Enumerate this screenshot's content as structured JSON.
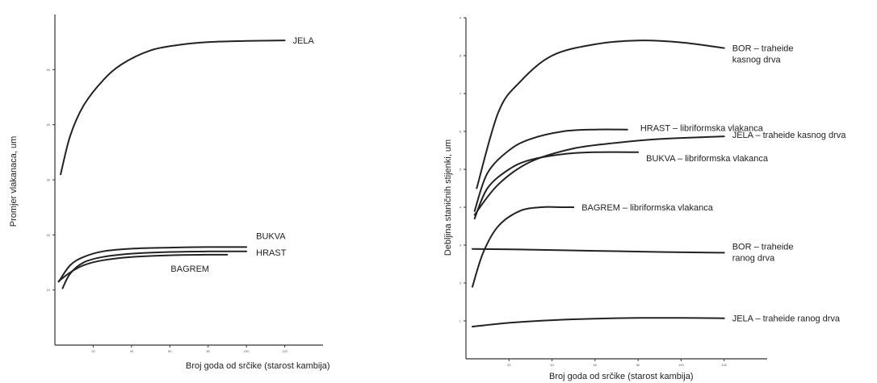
{
  "chart_data": [
    {
      "type": "line",
      "title": "",
      "xlabel": "Broj goda od srčike (starost kambija)",
      "ylabel": "Promjer vlakanaca, um",
      "xlim": [
        0,
        140
      ],
      "ylim": [
        0,
        60
      ],
      "x_ticks": [
        20,
        40,
        60,
        80,
        100,
        120
      ],
      "y_ticks": [
        10,
        20,
        30,
        40,
        50
      ],
      "series": [
        {
          "name": "JELA",
          "x": [
            3,
            8,
            15,
            25,
            35,
            50,
            65,
            80,
            100,
            120
          ],
          "y": [
            31,
            38,
            43.5,
            48,
            51,
            53.5,
            54.5,
            55,
            55.2,
            55.3
          ]
        },
        {
          "name": "BUKVA",
          "x": [
            2,
            8,
            15,
            25,
            40,
            60,
            80,
            100
          ],
          "y": [
            11.5,
            14.5,
            16,
            17,
            17.5,
            17.7,
            17.8,
            17.8
          ]
        },
        {
          "name": "HRAST",
          "x": [
            4,
            8,
            15,
            25,
            40,
            60,
            80,
            100
          ],
          "y": [
            10.3,
            13,
            15,
            16,
            16.6,
            16.9,
            17,
            17
          ]
        },
        {
          "name": "BAGREM",
          "x": [
            2,
            8,
            15,
            25,
            40,
            60,
            80,
            90
          ],
          "y": [
            11.6,
            13.2,
            14.5,
            15.4,
            16,
            16.3,
            16.4,
            16.4
          ]
        }
      ]
    },
    {
      "type": "line",
      "title": "",
      "xlabel": "Broj goda od srčike (starost kambija)",
      "ylabel": "Debljina staničnih stijenki, um",
      "xlim": [
        0,
        140
      ],
      "ylim": [
        0,
        9
      ],
      "x_ticks": [
        20,
        40,
        60,
        80,
        100,
        120
      ],
      "y_ticks": [
        1,
        2,
        3,
        4,
        5,
        6,
        7,
        8,
        9
      ],
      "series": [
        {
          "name": "BOR – traheide kasnog drva",
          "x": [
            5,
            15,
            25,
            40,
            60,
            80,
            100,
            120
          ],
          "y": [
            4.5,
            6.5,
            7.3,
            8.0,
            8.3,
            8.4,
            8.35,
            8.2
          ]
        },
        {
          "name": "HRAST – libriformska vlakanca",
          "x": [
            4,
            10,
            20,
            30,
            45,
            60,
            75
          ],
          "y": [
            3.9,
            4.9,
            5.5,
            5.8,
            6.0,
            6.05,
            6.05
          ]
        },
        {
          "name": "JELA – traheide kasnog drva",
          "x": [
            4,
            15,
            30,
            50,
            70,
            90,
            110,
            120
          ],
          "y": [
            3.8,
            4.6,
            5.2,
            5.55,
            5.7,
            5.8,
            5.85,
            5.87
          ]
        },
        {
          "name": "BUKVA – libriformska vlakanca",
          "x": [
            4,
            10,
            20,
            30,
            45,
            60,
            80
          ],
          "y": [
            3.7,
            4.5,
            5.0,
            5.25,
            5.4,
            5.45,
            5.45
          ]
        },
        {
          "name": "BAGREM – libriformska vlakanca",
          "x": [
            3,
            8,
            15,
            25,
            35,
            45,
            50
          ],
          "y": [
            1.9,
            2.8,
            3.5,
            3.9,
            4.0,
            4.0,
            4.0
          ]
        },
        {
          "name": "BOR – traheide ranog drva",
          "x": [
            3,
            30,
            60,
            90,
            120
          ],
          "y": [
            2.9,
            2.88,
            2.85,
            2.82,
            2.8
          ]
        },
        {
          "name": "JELA – traheide ranog drva",
          "x": [
            3,
            20,
            40,
            60,
            80,
            100,
            120
          ],
          "y": [
            0.85,
            0.95,
            1.02,
            1.06,
            1.08,
            1.08,
            1.07
          ]
        }
      ]
    }
  ]
}
